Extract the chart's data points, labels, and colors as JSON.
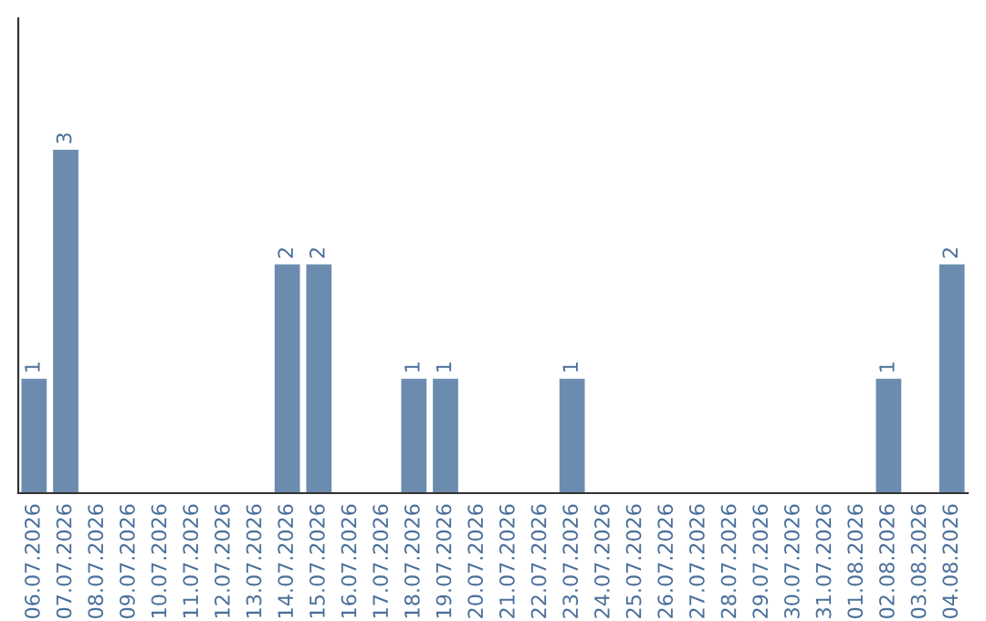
{
  "chart_data": {
    "type": "bar",
    "categories": [
      "06.07.2026",
      "07.07.2026",
      "08.07.2026",
      "09.07.2026",
      "10.07.2026",
      "11.07.2026",
      "12.07.2026",
      "13.07.2026",
      "14.07.2026",
      "15.07.2026",
      "16.07.2026",
      "17.07.2026",
      "18.07.2026",
      "19.07.2026",
      "20.07.2026",
      "21.07.2026",
      "22.07.2026",
      "23.07.2026",
      "24.07.2026",
      "25.07.2026",
      "26.07.2026",
      "27.07.2026",
      "28.07.2026",
      "29.07.2026",
      "30.07.2026",
      "31.07.2026",
      "01.08.2026",
      "02.08.2026",
      "03.08.2026",
      "04.08.2026"
    ],
    "values": [
      1,
      3,
      0,
      0,
      0,
      0,
      0,
      0,
      2,
      2,
      0,
      0,
      1,
      1,
      0,
      0,
      0,
      1,
      0,
      0,
      0,
      0,
      0,
      0,
      0,
      0,
      0,
      1,
      0,
      2
    ],
    "value_labels": [
      "1",
      "3",
      null,
      null,
      null,
      null,
      null,
      null,
      "2",
      "2",
      null,
      null,
      "1",
      "1",
      null,
      null,
      null,
      "1",
      null,
      null,
      null,
      null,
      null,
      null,
      null,
      null,
      null,
      "1",
      null,
      "2"
    ],
    "color": "#6b8cae",
    "ylim": [
      0,
      4.15
    ],
    "tick_labels": "x",
    "grid": false
  }
}
